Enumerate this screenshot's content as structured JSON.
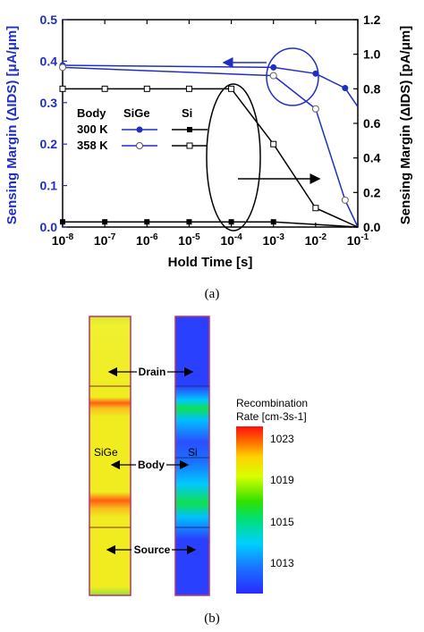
{
  "chart_data": [
    {
      "type": "line",
      "xlabel": "Hold Time [s]",
      "x_scale": "log",
      "xlim": [
        1e-08,
        0.1
      ],
      "x_ticks": [
        "10-8",
        "10-7",
        "10-6",
        "10-5",
        "10-4",
        "10-3",
        "10-2",
        "10-1"
      ],
      "ylabel_left": "Sensing Margin (ΔIDS) [μA/μm]",
      "ylim_left": [
        0,
        0.5
      ],
      "y_ticks_left": [
        "0.0",
        "0.1",
        "0.2",
        "0.3",
        "0.4",
        "0.5"
      ],
      "ylabel_right": "Sensing Margin (ΔIDS) [pA/μm]",
      "ylim_right": [
        0,
        1.2
      ],
      "y_ticks_right": [
        "0.0",
        "0.2",
        "0.4",
        "0.6",
        "0.8",
        "1.0",
        "1.2"
      ],
      "legend": {
        "header": [
          "Body",
          "SiGe",
          "Si"
        ],
        "rows": [
          "300 K",
          "358 K"
        ]
      },
      "series": [
        {
          "name": "SiGe 300 K",
          "axis": "left",
          "color": "#1f2fc4",
          "marker": "filled-circle",
          "x": [
            1e-08,
            0.001,
            0.01,
            0.05,
            0.1
          ],
          "y": [
            0.39,
            0.385,
            0.37,
            0.335,
            0.29
          ]
        },
        {
          "name": "SiGe 358 K",
          "axis": "left",
          "color": "#1f2fc4",
          "marker": "open-circle",
          "x": [
            1e-08,
            0.001,
            0.01,
            0.05,
            0.1
          ],
          "y": [
            0.385,
            0.365,
            0.285,
            0.065,
            0.0
          ]
        },
        {
          "name": "Si 300 K",
          "axis": "right",
          "color": "#000000",
          "marker": "filled-square",
          "x": [
            1e-08,
            1e-07,
            1e-06,
            1e-05,
            0.0001,
            0.001,
            0.1
          ],
          "y": [
            0.03,
            0.03,
            0.03,
            0.03,
            0.03,
            0.03,
            0.0
          ]
        },
        {
          "name": "Si 358 K",
          "axis": "right",
          "color": "#000000",
          "marker": "open-square",
          "x": [
            1e-08,
            1e-07,
            1e-06,
            1e-05,
            0.0001,
            0.001,
            0.01,
            0.1
          ],
          "y": [
            0.8,
            0.8,
            0.8,
            0.8,
            0.8,
            0.48,
            0.11,
            0.0
          ]
        }
      ],
      "caption": "(a)"
    },
    {
      "type": "heatmap",
      "colorbar_title_line1": "Recombination",
      "colorbar_title_line2": "Rate [cm-3s-1]",
      "colorbar_ticks": [
        "1023",
        "1019",
        "1015",
        "1013"
      ],
      "device_labels": {
        "left": "SiGe",
        "right": "Si"
      },
      "region_labels": [
        "Drain",
        "Body",
        "Source"
      ],
      "caption": "(b)"
    }
  ]
}
